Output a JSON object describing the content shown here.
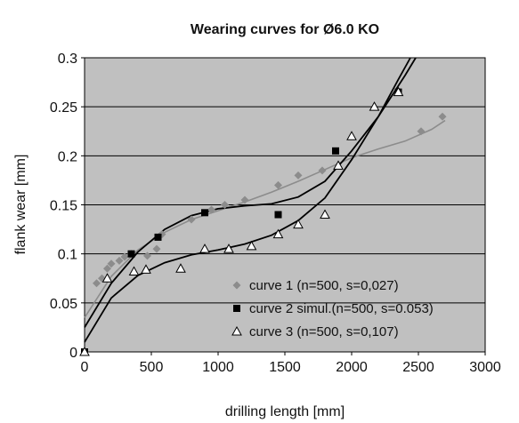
{
  "chart_data": {
    "type": "scatter",
    "title": "Wearing curves for Ø6.0  KO",
    "xlabel": "drilling length [mm]",
    "ylabel": "flank wear [mm]",
    "xlim": [
      0,
      3000
    ],
    "ylim": [
      0,
      0.3
    ],
    "xticks": [
      "0",
      "500",
      "1000",
      "1500",
      "2000",
      "2500",
      "3000"
    ],
    "yticks": [
      "0",
      "0.05",
      "0.1",
      "0.15",
      "0.2",
      "0.25",
      "0.3"
    ],
    "plot_background": "#c0c0c0",
    "grid": "horizontal",
    "legend_position": "bottom-right",
    "series": [
      {
        "name": "curve 1 (n=500, s=0,027)",
        "marker": "diamond",
        "color": "#8c8c8c",
        "points": [
          [
            0,
            0
          ],
          [
            90,
            0.07
          ],
          [
            130,
            0.075
          ],
          [
            170,
            0.085
          ],
          [
            200,
            0.09
          ],
          [
            260,
            0.093
          ],
          [
            300,
            0.097
          ],
          [
            350,
            0.1
          ],
          [
            470,
            0.098
          ],
          [
            540,
            0.105
          ],
          [
            580,
            0.12
          ],
          [
            800,
            0.135
          ],
          [
            950,
            0.145
          ],
          [
            1050,
            0.15
          ],
          [
            1200,
            0.155
          ],
          [
            1450,
            0.17
          ],
          [
            1600,
            0.18
          ],
          [
            1780,
            0.185
          ],
          [
            2520,
            0.225
          ],
          [
            2680,
            0.24
          ]
        ],
        "trend": [
          [
            0,
            0.035
          ],
          [
            200,
            0.077
          ],
          [
            400,
            0.104
          ],
          [
            600,
            0.122
          ],
          [
            800,
            0.135
          ],
          [
            1000,
            0.144
          ],
          [
            1200,
            0.153
          ],
          [
            1400,
            0.163
          ],
          [
            1600,
            0.174
          ],
          [
            1800,
            0.186
          ],
          [
            2000,
            0.198
          ],
          [
            2200,
            0.207
          ],
          [
            2400,
            0.215
          ],
          [
            2600,
            0.227
          ],
          [
            2700,
            0.236
          ]
        ]
      },
      {
        "name": "curve 2  simul.(n=500, s=0.053)",
        "marker": "square",
        "color": "#000000",
        "points": [
          [
            0,
            0
          ],
          [
            350,
            0.1
          ],
          [
            550,
            0.117
          ],
          [
            900,
            0.142
          ],
          [
            1450,
            0.14
          ],
          [
            1880,
            0.205
          ],
          [
            2350,
            0.265
          ]
        ],
        "trend": [
          [
            0,
            0.025
          ],
          [
            200,
            0.07
          ],
          [
            400,
            0.102
          ],
          [
            600,
            0.125
          ],
          [
            800,
            0.139
          ],
          [
            1000,
            0.146
          ],
          [
            1200,
            0.149
          ],
          [
            1400,
            0.151
          ],
          [
            1600,
            0.158
          ],
          [
            1800,
            0.174
          ],
          [
            2000,
            0.205
          ],
          [
            2200,
            0.24
          ],
          [
            2400,
            0.282
          ],
          [
            2480,
            0.3
          ]
        ]
      },
      {
        "name": "curve 3  (n=500, s=0,107)",
        "marker": "triangle-open",
        "color": "#000000",
        "points": [
          [
            0,
            0
          ],
          [
            170,
            0.075
          ],
          [
            370,
            0.082
          ],
          [
            460,
            0.084
          ],
          [
            720,
            0.085
          ],
          [
            900,
            0.105
          ],
          [
            1080,
            0.105
          ],
          [
            1250,
            0.108
          ],
          [
            1450,
            0.12
          ],
          [
            1600,
            0.13
          ],
          [
            1800,
            0.14
          ],
          [
            1900,
            0.19
          ],
          [
            2000,
            0.22
          ],
          [
            2170,
            0.25
          ],
          [
            2350,
            0.265
          ]
        ],
        "trend": [
          [
            0,
            0.01
          ],
          [
            200,
            0.055
          ],
          [
            400,
            0.078
          ],
          [
            600,
            0.091
          ],
          [
            800,
            0.099
          ],
          [
            1000,
            0.104
          ],
          [
            1200,
            0.11
          ],
          [
            1400,
            0.119
          ],
          [
            1600,
            0.134
          ],
          [
            1800,
            0.157
          ],
          [
            2000,
            0.196
          ],
          [
            2200,
            0.24
          ],
          [
            2350,
            0.278
          ],
          [
            2440,
            0.3
          ]
        ]
      }
    ]
  }
}
